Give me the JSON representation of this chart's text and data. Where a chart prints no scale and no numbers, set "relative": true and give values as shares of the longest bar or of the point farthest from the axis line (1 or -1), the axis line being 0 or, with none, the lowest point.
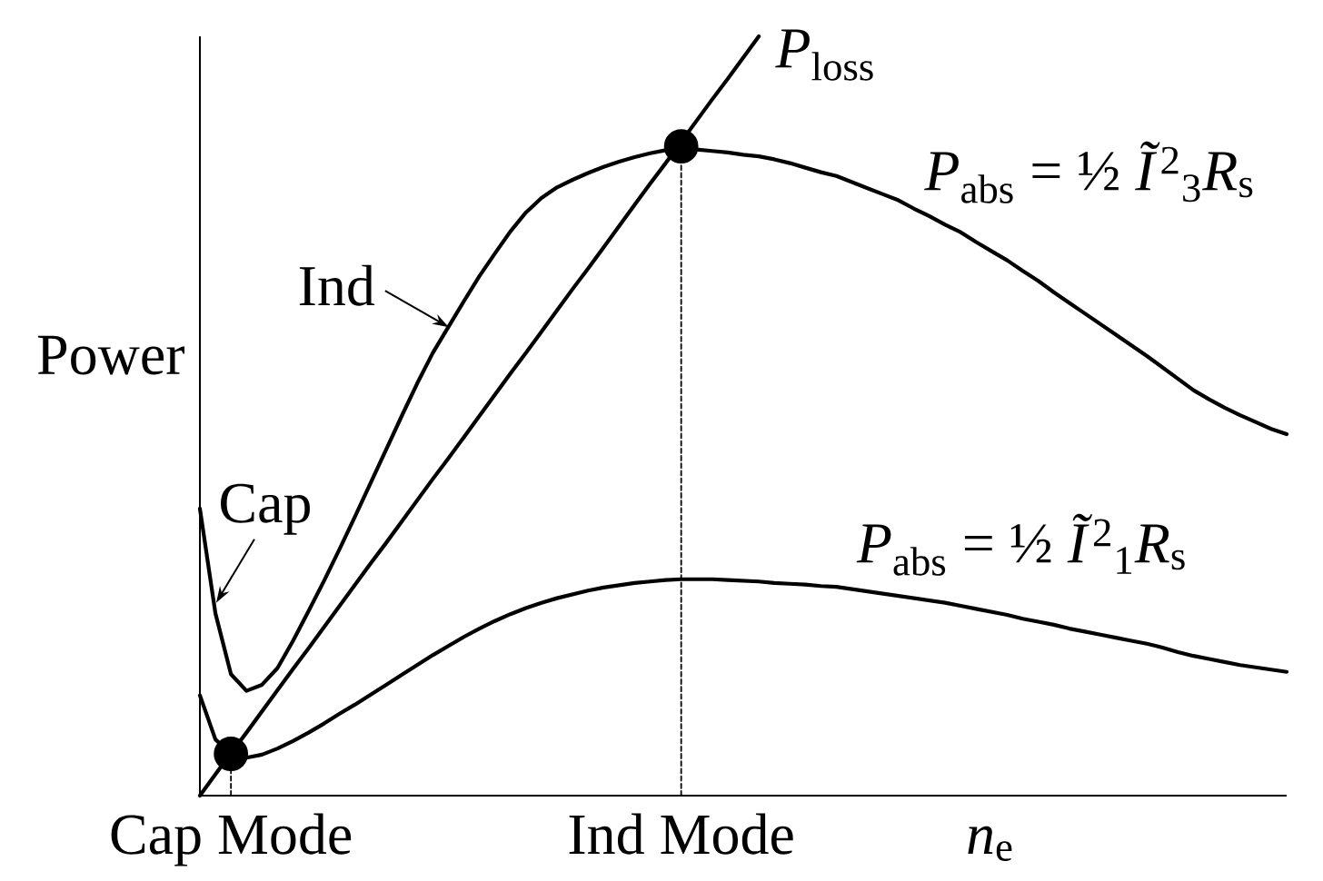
{
  "chart_data": {
    "type": "line",
    "relative": true,
    "ylabel": "Power",
    "xlabel": "*n*$_{e}$",
    "categories": [
      null,
      null,
      "Cap Mode",
      null,
      null,
      null,
      null,
      null,
      null,
      null,
      null,
      null,
      null,
      null,
      null,
      null,
      null,
      null,
      null,
      null,
      null,
      null,
      null,
      null,
      null,
      null,
      null,
      null,
      null,
      null,
      null,
      "Ind Mode",
      null,
      null,
      null,
      null,
      null,
      null,
      null,
      null,
      null,
      null,
      null,
      null,
      null,
      null,
      null,
      null,
      null,
      null,
      null,
      null,
      null,
      null,
      null,
      null,
      null,
      null,
      null,
      null,
      null,
      null,
      null,
      null,
      null,
      null,
      null,
      null,
      null,
      null,
      null
    ],
    "tick_labels": "x",
    "marker": "none",
    "line_style": "solid",
    "series": [
      {
        "name": "*P*$_{loss}$",
        "color": "#000000",
        "values": [
          0,
          0.028,
          0.056,
          0.083,
          0.111,
          0.139,
          0.167,
          0.194,
          0.222,
          0.25,
          0.278,
          0.306,
          0.333,
          0.361,
          0.389,
          0.417,
          0.444,
          0.472,
          0.5,
          0.528,
          0.556,
          0.583,
          0.611,
          0.639,
          0.667,
          0.694,
          0.722,
          0.75,
          0.778,
          0.806,
          0.833,
          0.861,
          0.889,
          0.917,
          0.944,
          0.972,
          1,
          null,
          null,
          null,
          null,
          null,
          null,
          null,
          null,
          null,
          null,
          null,
          null,
          null,
          null,
          null,
          null,
          null,
          null,
          null,
          null,
          null,
          null,
          null,
          null,
          null,
          null,
          null,
          null,
          null,
          null,
          null,
          null,
          null,
          null
        ]
      },
      {
        "name": "*P*$_{abs}$ = ½ *Ĩ*$^{2}$$_{3}$*R*$_{s}$",
        "color": "#000000",
        "values": [
          0.378,
          0.24,
          0.16,
          0.138,
          0.146,
          0.168,
          0.204,
          0.243,
          0.283,
          0.325,
          0.368,
          0.412,
          0.456,
          0.5,
          0.543,
          0.583,
          0.617,
          0.651,
          0.684,
          0.714,
          0.743,
          0.768,
          0.787,
          0.801,
          0.811,
          0.82,
          0.828,
          0.835,
          0.841,
          0.846,
          0.85,
          0.852,
          0.851,
          0.849,
          0.847,
          0.844,
          0.842,
          0.838,
          0.833,
          0.827,
          0.821,
          0.816,
          0.808,
          0.8,
          0.792,
          0.784,
          0.773,
          0.763,
          0.752,
          0.742,
          0.729,
          0.717,
          0.705,
          0.691,
          0.678,
          0.663,
          0.649,
          0.635,
          0.621,
          0.607,
          0.593,
          0.579,
          0.564,
          0.549,
          0.534,
          0.522,
          0.511,
          0.501,
          0.492,
          0.483,
          0.476
        ]
      },
      {
        "name": "*P*$_{abs}$ = ½ *Ĩ*$^{2}$$_{1}$*R*$_{s}$",
        "color": "#000000",
        "values": [
          0.132,
          0.074,
          0.055,
          0.05,
          0.054,
          0.062,
          0.072,
          0.083,
          0.095,
          0.108,
          0.12,
          0.133,
          0.146,
          0.159,
          0.172,
          0.185,
          0.197,
          0.209,
          0.22,
          0.23,
          0.239,
          0.247,
          0.254,
          0.26,
          0.265,
          0.27,
          0.274,
          0.277,
          0.28,
          0.282,
          0.284,
          0.285,
          0.285,
          0.285,
          0.284,
          0.283,
          0.282,
          0.28,
          0.279,
          0.278,
          0.276,
          0.275,
          0.272,
          0.269,
          0.266,
          0.263,
          0.26,
          0.257,
          0.254,
          0.25,
          0.246,
          0.242,
          0.238,
          0.233,
          0.229,
          0.225,
          0.22,
          0.216,
          0.212,
          0.208,
          0.204,
          0.2,
          0.195,
          0.189,
          0.184,
          0.18,
          0.176,
          0.172,
          0.169,
          0.166,
          0.163
        ]
      },
      {
        "type": "lollipop",
        "color": "#000000",
        "marker": "circle",
        "line_style": "dotted",
        "values": [
          null,
          null,
          0.055,
          null,
          null,
          null,
          null,
          null,
          null,
          null,
          null,
          null,
          null,
          null,
          null,
          null,
          null,
          null,
          null,
          null,
          null,
          null,
          null,
          null,
          null,
          null,
          null,
          null,
          null,
          null,
          null,
          0.855,
          null,
          null,
          null,
          null,
          null,
          null,
          null,
          null,
          null,
          null,
          null,
          null,
          null,
          null,
          null,
          null,
          null,
          null,
          null,
          null,
          null,
          null,
          null,
          null,
          null,
          null,
          null,
          null,
          null,
          null,
          null,
          null,
          null,
          null,
          null,
          null,
          null,
          null,
          null
        ]
      }
    ],
    "annotations": [
      "Ind",
      "Cap"
    ]
  }
}
